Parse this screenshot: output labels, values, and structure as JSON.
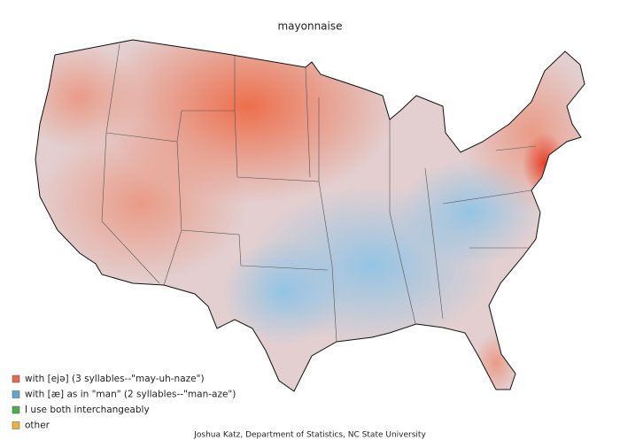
{
  "title": "mayonnaise",
  "legend": [
    {
      "label": "with [ejə] (3 syllables--\"may-uh-naze\")",
      "color": "#e8684a"
    },
    {
      "label": "with [æ] as in \"man\" (2 syllables--\"man-aze\")",
      "color": "#5da5d6"
    },
    {
      "label": "I use both interchangeably",
      "color": "#4daf4a"
    },
    {
      "label": "other",
      "color": "#e8b53a"
    }
  ],
  "credit": "Joshua Katz, Department of Statistics, NC State University"
}
